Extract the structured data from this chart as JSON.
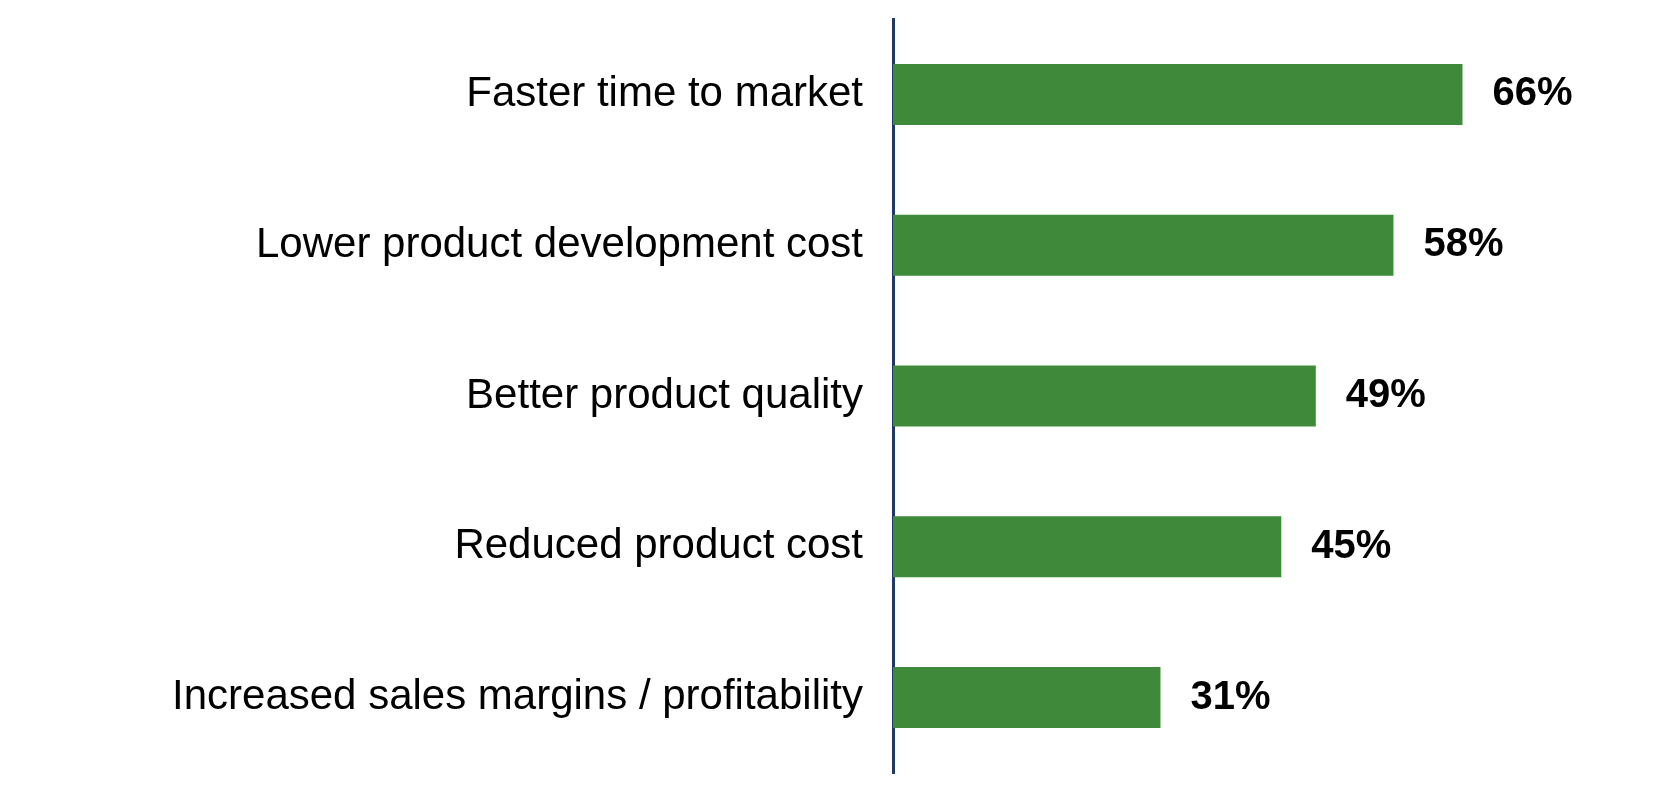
{
  "chart_data": {
    "type": "bar",
    "orientation": "horizontal",
    "categories": [
      "Faster time to market",
      "Lower product development cost",
      "Better product quality",
      "Reduced product cost",
      "Increased sales margins / profitability"
    ],
    "values": [
      66,
      58,
      49,
      45,
      31
    ],
    "value_labels": [
      "66%",
      "58%",
      "49%",
      "45%",
      "31%"
    ],
    "color": "#3f8a3a",
    "tick_labels": "y",
    "legend": false
  }
}
